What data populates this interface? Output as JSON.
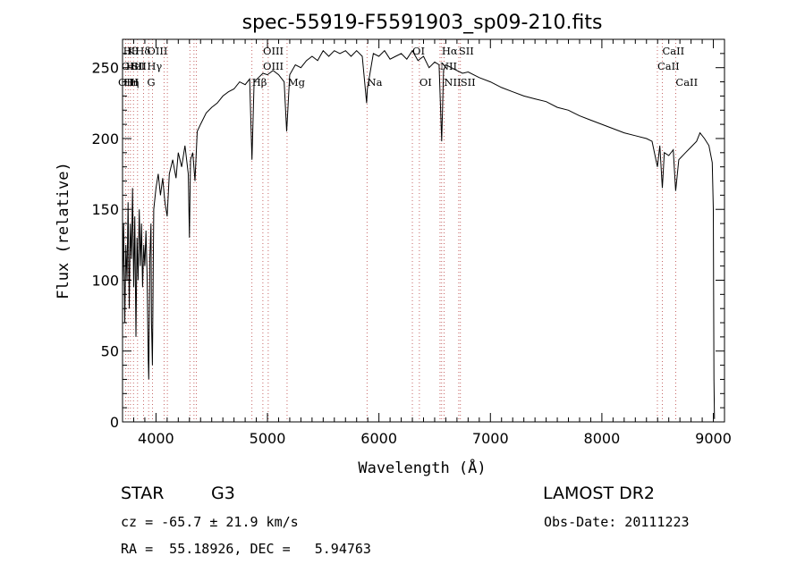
{
  "chart_data": {
    "type": "line",
    "title": "spec-55919-F5591903_sp09-210.fits",
    "xlabel": "Wavelength (Å)",
    "ylabel": "Flux (relative)",
    "xlim": [
      3700,
      9100
    ],
    "ylim": [
      0,
      270
    ],
    "x_ticks": [
      4000,
      5000,
      6000,
      7000,
      8000,
      9000
    ],
    "y_ticks": [
      0,
      50,
      100,
      150,
      200,
      250
    ],
    "grid": false,
    "series": [
      {
        "values": [
          [
            3700,
            95
          ],
          [
            3710,
            140
          ],
          [
            3720,
            70
          ],
          [
            3730,
            125
          ],
          [
            3740,
            100
          ],
          [
            3750,
            155
          ],
          [
            3760,
            80
          ],
          [
            3770,
            140
          ],
          [
            3780,
            115
          ],
          [
            3790,
            165
          ],
          [
            3800,
            95
          ],
          [
            3810,
            145
          ],
          [
            3820,
            60
          ],
          [
            3830,
            130
          ],
          [
            3840,
            100
          ],
          [
            3850,
            150
          ],
          [
            3860,
            110
          ],
          [
            3870,
            140
          ],
          [
            3880,
            95
          ],
          [
            3890,
            125
          ],
          [
            3900,
            110
          ],
          [
            3910,
            135
          ],
          [
            3920,
            105
          ],
          [
            3930,
            45
          ],
          [
            3935,
            30
          ],
          [
            3945,
            115
          ],
          [
            3955,
            140
          ],
          [
            3960,
            70
          ],
          [
            3968,
            40
          ],
          [
            3980,
            150
          ],
          [
            4000,
            165
          ],
          [
            4020,
            175
          ],
          [
            4040,
            160
          ],
          [
            4060,
            172
          ],
          [
            4080,
            155
          ],
          [
            4100,
            145
          ],
          [
            4120,
            175
          ],
          [
            4150,
            185
          ],
          [
            4180,
            172
          ],
          [
            4200,
            190
          ],
          [
            4230,
            180
          ],
          [
            4260,
            195
          ],
          [
            4290,
            175
          ],
          [
            4300,
            130
          ],
          [
            4310,
            185
          ],
          [
            4330,
            190
          ],
          [
            4350,
            170
          ],
          [
            4370,
            205
          ],
          [
            4400,
            210
          ],
          [
            4450,
            218
          ],
          [
            4500,
            222
          ],
          [
            4550,
            225
          ],
          [
            4600,
            230
          ],
          [
            4650,
            233
          ],
          [
            4700,
            235
          ],
          [
            4750,
            240
          ],
          [
            4800,
            238
          ],
          [
            4840,
            242
          ],
          [
            4861,
            185
          ],
          [
            4880,
            240
          ],
          [
            4920,
            243
          ],
          [
            4960,
            246
          ],
          [
            5000,
            245
          ],
          [
            5050,
            248
          ],
          [
            5100,
            245
          ],
          [
            5150,
            240
          ],
          [
            5172,
            205
          ],
          [
            5183,
            220
          ],
          [
            5200,
            245
          ],
          [
            5250,
            252
          ],
          [
            5300,
            250
          ],
          [
            5350,
            255
          ],
          [
            5400,
            258
          ],
          [
            5450,
            255
          ],
          [
            5500,
            262
          ],
          [
            5550,
            258
          ],
          [
            5600,
            262
          ],
          [
            5650,
            260
          ],
          [
            5700,
            262
          ],
          [
            5750,
            258
          ],
          [
            5800,
            262
          ],
          [
            5850,
            258
          ],
          [
            5890,
            225
          ],
          [
            5896,
            235
          ],
          [
            5950,
            260
          ],
          [
            6000,
            258
          ],
          [
            6050,
            262
          ],
          [
            6100,
            256
          ],
          [
            6150,
            258
          ],
          [
            6200,
            260
          ],
          [
            6250,
            256
          ],
          [
            6300,
            262
          ],
          [
            6350,
            255
          ],
          [
            6400,
            258
          ],
          [
            6450,
            250
          ],
          [
            6500,
            254
          ],
          [
            6540,
            252
          ],
          [
            6563,
            198
          ],
          [
            6580,
            248
          ],
          [
            6600,
            252
          ],
          [
            6650,
            250
          ],
          [
            6700,
            248
          ],
          [
            6750,
            246
          ],
          [
            6800,
            247
          ],
          [
            6900,
            243
          ],
          [
            7000,
            240
          ],
          [
            7100,
            236
          ],
          [
            7200,
            233
          ],
          [
            7300,
            230
          ],
          [
            7400,
            228
          ],
          [
            7500,
            226
          ],
          [
            7600,
            222
          ],
          [
            7700,
            220
          ],
          [
            7800,
            216
          ],
          [
            7900,
            213
          ],
          [
            8000,
            210
          ],
          [
            8100,
            207
          ],
          [
            8200,
            204
          ],
          [
            8300,
            202
          ],
          [
            8400,
            200
          ],
          [
            8450,
            198
          ],
          [
            8498,
            180
          ],
          [
            8520,
            195
          ],
          [
            8542,
            165
          ],
          [
            8560,
            190
          ],
          [
            8600,
            188
          ],
          [
            8640,
            192
          ],
          [
            8662,
            163
          ],
          [
            8690,
            185
          ],
          [
            8750,
            190
          ],
          [
            8800,
            194
          ],
          [
            8850,
            198
          ],
          [
            8880,
            204
          ],
          [
            8920,
            200
          ],
          [
            8960,
            195
          ],
          [
            8990,
            183
          ],
          [
            9000,
            150
          ],
          [
            9005,
            30
          ],
          [
            9010,
            2
          ]
        ]
      }
    ],
    "line_markers": {
      "top_row": [
        {
          "x": 3705,
          "text": "Hθ"
        },
        {
          "x": 3740,
          "text": "K"
        },
        {
          "x": 3815,
          "text": "Hδ"
        },
        {
          "x": 3920,
          "text": "OIII"
        },
        {
          "x": 4960,
          "text": "OIII"
        },
        {
          "x": 6300,
          "text": "OI"
        },
        {
          "x": 6563,
          "text": "Hα"
        },
        {
          "x": 6716,
          "text": "SII"
        },
        {
          "x": 8542,
          "text": "CaII"
        }
      ],
      "mid_row": [
        {
          "x": 3690,
          "text": "OIII"
        },
        {
          "x": 3730,
          "text": "HeI"
        },
        {
          "x": 3780,
          "text": "SII"
        },
        {
          "x": 3920,
          "text": "Hγ"
        },
        {
          "x": 4960,
          "text": "OIII"
        },
        {
          "x": 6548,
          "text": "NII"
        },
        {
          "x": 8498,
          "text": "CaII"
        }
      ],
      "low_row": [
        {
          "x": 3660,
          "text": "OIII"
        },
        {
          "x": 3712,
          "text": "Hη"
        },
        {
          "x": 3765,
          "text": "H"
        },
        {
          "x": 3920,
          "text": "G"
        },
        {
          "x": 4861,
          "text": "Hβ"
        },
        {
          "x": 5183,
          "text": "Mg"
        },
        {
          "x": 5895,
          "text": "Na"
        },
        {
          "x": 6363,
          "text": "OI"
        },
        {
          "x": 6584,
          "text": "NII"
        },
        {
          "x": 6731,
          "text": "SII"
        },
        {
          "x": 8662,
          "text": "CaII"
        }
      ],
      "dotted_lines": [
        3727,
        3750,
        3771,
        3798,
        3835,
        3889,
        3934,
        3969,
        4072,
        4102,
        4304,
        4341,
        4363,
        4861,
        4959,
        5007,
        5176,
        5893,
        6300,
        6363,
        6548,
        6563,
        6584,
        6716,
        6731,
        8498,
        8542,
        8662
      ]
    }
  },
  "info": {
    "object_type": "STAR",
    "subclass": "G3",
    "survey": "LAMOST DR2",
    "redshift": "cz = -65.7 ± 21.9 km/s",
    "obs_date": "Obs-Date: 20111223",
    "coords": "RA =  55.18926, DEC =   5.94763"
  },
  "colors": {
    "line": "#000000",
    "marker_line": "#b84040",
    "background": "#ffffff"
  }
}
